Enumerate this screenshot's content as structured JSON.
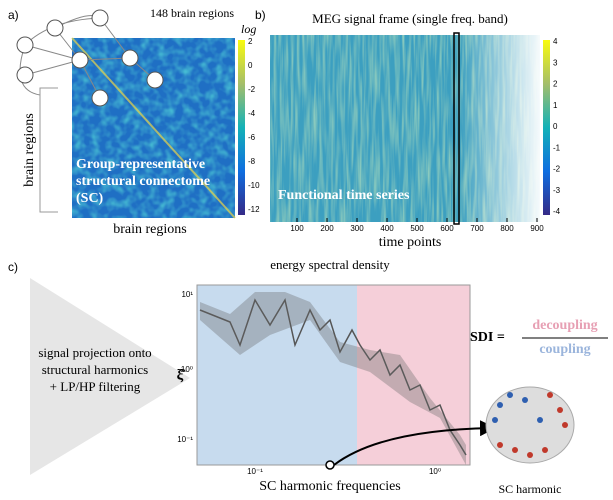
{
  "panel_a": {
    "label": "a)",
    "nodes_caption": "148 brain regions",
    "scale_label": "log",
    "colorbar_ticks": [
      2,
      0,
      -2,
      -4,
      -6,
      -8,
      -10,
      -12
    ],
    "y_label": "brain regions",
    "x_label": "brain regions",
    "overlay_lines": [
      "Group-representative",
      "structural connectome",
      "(SC)"
    ]
  },
  "panel_b": {
    "label": "b)",
    "title": "MEG signal frame (single freq. band)",
    "colorbar_ticks": [
      4,
      3,
      2,
      1,
      0,
      -1,
      -2,
      -3,
      -4
    ],
    "overlay": "Functional time series",
    "x_ticks": [
      100,
      200,
      300,
      400,
      500,
      600,
      700,
      800,
      900
    ],
    "x_label": "time points"
  },
  "panel_c": {
    "label": "c)",
    "process_lines": [
      "signal projection onto",
      "structural harmonics",
      "+ LP/HP filtering"
    ],
    "plot_title": "energy spectral density",
    "y_label": "ξ̂",
    "y_ticks": [
      "10¹",
      "10⁰",
      "10⁻¹"
    ],
    "x_ticks": [
      "10⁻¹",
      "10⁰"
    ],
    "x_label": "SC harmonic frequencies",
    "sdi_label": "SDI =",
    "numerator": "decoupling",
    "denominator": "coupling",
    "brain_caption": "SC harmonic"
  }
}
